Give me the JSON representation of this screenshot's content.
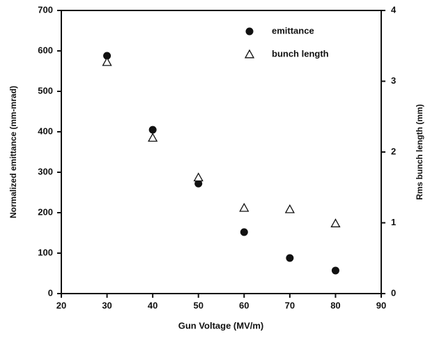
{
  "chart_data": {
    "type": "scatter",
    "x_label": "Gun Voltage (MV/m)",
    "y_label": "Normalized emittance (mm-mrad)",
    "y2_label": "Rms bunch length (mm)",
    "x": [
      30,
      40,
      50,
      60,
      70,
      80
    ],
    "series": [
      {
        "name": "emittance",
        "color": "#111111",
        "marker": "circle",
        "axis": "y",
        "values": [
          588,
          405,
          272,
          152,
          88,
          57
        ]
      },
      {
        "name": "bunch length",
        "color": "#111111",
        "marker": "triangle",
        "axis": "y2",
        "values": [
          3.27,
          2.2,
          1.64,
          1.21,
          1.19,
          0.99
        ]
      }
    ],
    "xlim": [
      20,
      90
    ],
    "xticks": [
      20,
      30,
      40,
      50,
      60,
      70,
      80,
      90
    ],
    "ylim": [
      0,
      700
    ],
    "yticks": [
      0,
      100,
      200,
      300,
      400,
      500,
      600,
      700
    ],
    "y2lim": [
      0,
      4
    ],
    "y2ticks": [
      0,
      1,
      2,
      3,
      4
    ],
    "legend": "top-center"
  }
}
